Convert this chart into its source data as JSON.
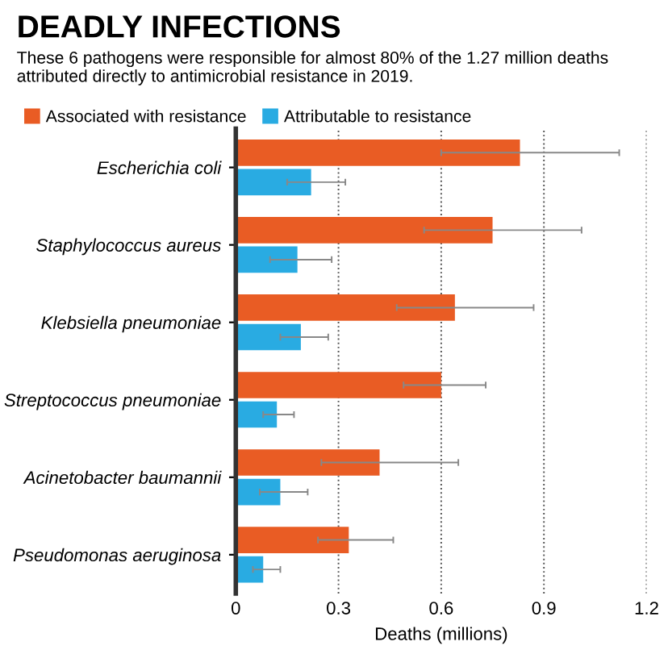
{
  "chart_data": {
    "type": "bar",
    "orientation": "horizontal",
    "title": "DEADLY INFECTIONS",
    "subtitle": "These 6 pathogens were responsible for almost 80% of the 1.27 million deaths attributed directly to antimicrobial resistance in 2019.",
    "xlabel": "Deaths (millions)",
    "categories": [
      "Escherichia coli",
      "Staphylococcus aureus",
      "Klebsiella pneumoniae",
      "Streptococcus pneumoniae",
      "Acinetobacter baumannii",
      "Pseudomonas aeruginosa"
    ],
    "series": [
      {
        "name": "Associated with resistance",
        "color": "#e95c24",
        "values": [
          0.83,
          0.75,
          0.64,
          0.6,
          0.42,
          0.33
        ],
        "errors": [
          [
            0.6,
            1.12
          ],
          [
            0.55,
            1.01
          ],
          [
            0.47,
            0.87
          ],
          [
            0.49,
            0.73
          ],
          [
            0.25,
            0.65
          ],
          [
            0.24,
            0.46
          ]
        ]
      },
      {
        "name": "Attributable to resistance",
        "color": "#29abe2",
        "values": [
          0.22,
          0.18,
          0.19,
          0.12,
          0.13,
          0.08
        ],
        "errors": [
          [
            0.15,
            0.32
          ],
          [
            0.1,
            0.28
          ],
          [
            0.13,
            0.27
          ],
          [
            0.08,
            0.17
          ],
          [
            0.07,
            0.21
          ],
          [
            0.05,
            0.13
          ]
        ]
      }
    ],
    "xlim": [
      0,
      1.2
    ],
    "xticks": [
      0,
      0.3,
      0.6,
      0.9,
      1.2
    ],
    "grid": "x",
    "legend": "top left"
  }
}
